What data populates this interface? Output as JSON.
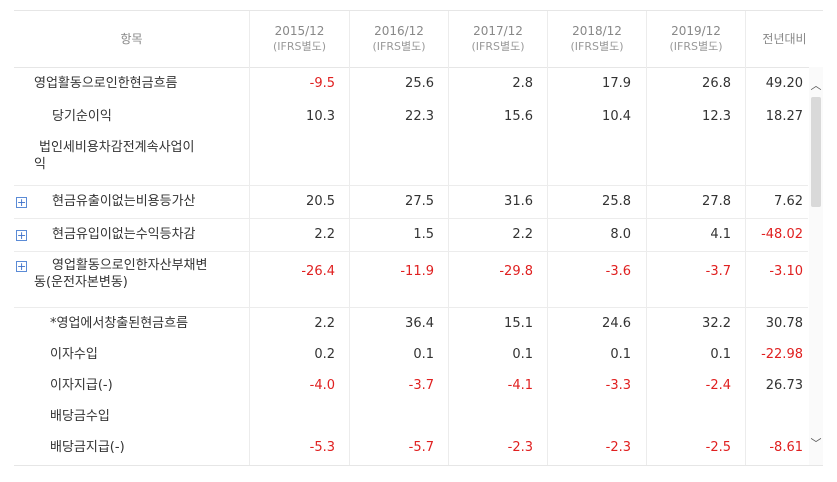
{
  "header": {
    "item": "항목",
    "cols": [
      {
        "year": "2015/12",
        "sub": "(IFRS별도)"
      },
      {
        "year": "2016/12",
        "sub": "(IFRS별도)"
      },
      {
        "year": "2017/12",
        "sub": "(IFRS별도)"
      },
      {
        "year": "2018/12",
        "sub": "(IFRS별도)"
      },
      {
        "year": "2019/12",
        "sub": "(IFRS별도)"
      }
    ],
    "yoy": "전년대비"
  },
  "rows": [
    {
      "label": "영업활동으로인한현금흐름",
      "expand": "",
      "values": [
        "-9.5",
        "25.6",
        "2.8",
        "17.9",
        "26.8"
      ],
      "yoy": "49.20"
    },
    {
      "label": "당기순이익",
      "expand": "",
      "values": [
        "10.3",
        "22.3",
        "15.6",
        "10.4",
        "12.3"
      ],
      "yoy": "18.27"
    },
    {
      "label": "법인세비용차감전계속사업이",
      "label2": "익",
      "expand": "",
      "values": [
        "",
        "",
        "",
        "",
        ""
      ],
      "yoy": ""
    },
    {
      "label": "현금유출이없는비용등가산",
      "expand": "+",
      "values": [
        "20.5",
        "27.5",
        "31.6",
        "25.8",
        "27.8"
      ],
      "yoy": "7.62"
    },
    {
      "label": "현금유입이없는수익등차감",
      "expand": "+",
      "values": [
        "2.2",
        "1.5",
        "2.2",
        "8.0",
        "4.1"
      ],
      "yoy": "-48.02"
    },
    {
      "label": "영업활동으로인한자산부채변",
      "label2": "동(운전자본변동)",
      "expand": "+",
      "values": [
        "-26.4",
        "-11.9",
        "-29.8",
        "-3.6",
        "-3.7"
      ],
      "yoy": "-3.10"
    },
    {
      "label": "*영업에서창출된현금흐름",
      "expand": "",
      "values": [
        "2.2",
        "36.4",
        "15.1",
        "24.6",
        "32.2"
      ],
      "yoy": "30.78"
    },
    {
      "label": "이자수입",
      "expand": "",
      "values": [
        "0.2",
        "0.1",
        "0.1",
        "0.1",
        "0.1"
      ],
      "yoy": "-22.98"
    },
    {
      "label": "이자지급(-)",
      "expand": "",
      "values": [
        "-4.0",
        "-3.7",
        "-4.1",
        "-3.3",
        "-2.4"
      ],
      "yoy": "26.73"
    },
    {
      "label": "배당금수입",
      "expand": "",
      "values": [
        "",
        "",
        "",
        "",
        ""
      ],
      "yoy": ""
    },
    {
      "label": "배당금지급(-)",
      "expand": "",
      "values": [
        "-5.3",
        "-5.7",
        "-2.3",
        "-2.3",
        "-2.5"
      ],
      "yoy": "-8.61"
    }
  ],
  "icons": {
    "plus": "plus-square-icon",
    "up": "chevron-up-icon",
    "down": "chevron-down-icon"
  }
}
